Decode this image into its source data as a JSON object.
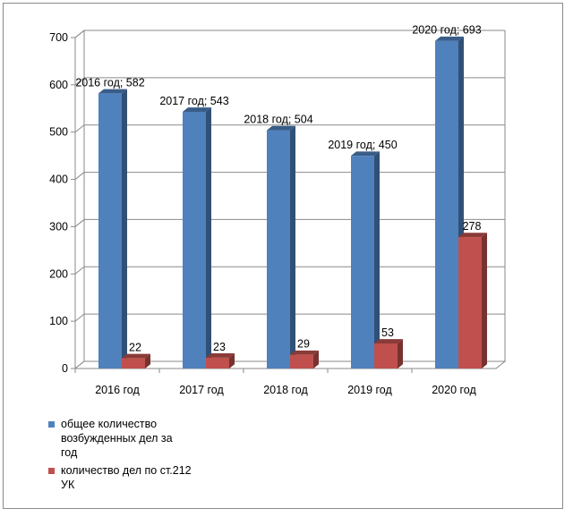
{
  "chart_data": {
    "type": "bar",
    "categories": [
      "2016 год",
      "2017 год",
      "2018 год",
      "2019 год",
      "2020 год"
    ],
    "series": [
      {
        "name": "общее количество возбужденных дел за год",
        "values": [
          582,
          543,
          504,
          450,
          693
        ],
        "labels": [
          "2016 год; 582",
          "2017 год; 543",
          "2018 год; 504",
          "2019 год; 450",
          "2020 год; 693"
        ],
        "color": "#4f81bd"
      },
      {
        "name": "количество дел по ст.212 УК",
        "values": [
          22,
          23,
          29,
          53,
          278
        ],
        "labels": [
          "22",
          "23",
          "29",
          "53",
          "278"
        ],
        "color": "#c0504d"
      }
    ],
    "yticks": [
      0,
      100,
      200,
      300,
      400,
      500,
      600,
      700
    ],
    "ylim": [
      0,
      700
    ],
    "grid": true,
    "legend_position": "bottom-left",
    "style": "3d-columns"
  }
}
